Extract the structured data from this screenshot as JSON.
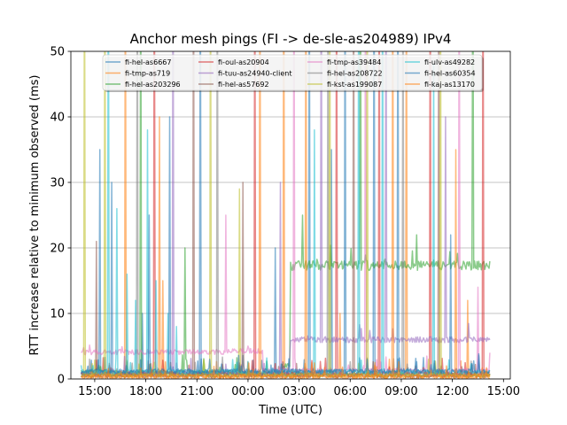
{
  "chart_data": {
    "type": "line",
    "title": "Anchor mesh pings (FI -> de-sle-as204989) IPv4",
    "xlabel": "Time (UTC)",
    "ylabel": "RTT increase relative to minimum observed (ms)",
    "x_unit": "hours since 00:00 UTC (day 1)",
    "xlim": [
      13.6,
      39.4
    ],
    "ylim": [
      0,
      50
    ],
    "grid": "horizontal",
    "legend_position": "top",
    "x_ticks": [
      {
        "value": 15,
        "label": "15:00"
      },
      {
        "value": 18,
        "label": "18:00"
      },
      {
        "value": 21,
        "label": "21:00"
      },
      {
        "value": 24,
        "label": "00:00"
      },
      {
        "value": 27,
        "label": "03:00"
      },
      {
        "value": 30,
        "label": "06:00"
      },
      {
        "value": 33,
        "label": "09:00"
      },
      {
        "value": 36,
        "label": "12:00"
      },
      {
        "value": 39,
        "label": "15:00"
      }
    ],
    "y_ticks": [
      {
        "value": 0,
        "label": "0"
      },
      {
        "value": 10,
        "label": "10"
      },
      {
        "value": 20,
        "label": "20"
      },
      {
        "value": 30,
        "label": "30"
      },
      {
        "value": 40,
        "label": "40"
      },
      {
        "value": 50,
        "label": "50"
      }
    ],
    "series": [
      {
        "name": "fi-hel-as6667",
        "color": "#1f77b4",
        "base": 0.9,
        "range": [
          14.2,
          38.2
        ],
        "spikes": [
          [
            15.3,
            35
          ],
          [
            17.8,
            10
          ],
          [
            21.2,
            50
          ],
          [
            25.6,
            20
          ],
          [
            27.6,
            50
          ],
          [
            28.9,
            35
          ],
          [
            31.4,
            50
          ]
        ]
      },
      {
        "name": "fi-tmp-as719",
        "color": "#ff7f0e",
        "base": 0.3,
        "range": [
          14.2,
          38.2
        ],
        "spikes": [
          [
            16.8,
            50
          ],
          [
            19.0,
            15
          ],
          [
            26.1,
            50
          ],
          [
            29.4,
            10
          ],
          [
            33.3,
            50
          ],
          [
            36.9,
            12
          ]
        ]
      },
      {
        "name": "fi-hel-as203296",
        "color": "#2ca02c",
        "base": 1.0,
        "range": [
          14.2,
          38.2
        ],
        "levels": [
          [
            14.2,
            1.0
          ],
          [
            26.0,
            2.0
          ],
          [
            26.5,
            17.3
          ]
        ],
        "spikes": [
          [
            17.7,
            50
          ],
          [
            20.3,
            20
          ],
          [
            27.2,
            25
          ],
          [
            30.6,
            50
          ],
          [
            33.9,
            22
          ],
          [
            37.2,
            50
          ]
        ]
      },
      {
        "name": "fi-oul-as20904",
        "color": "#d62728",
        "base": 0.8,
        "range": [
          14.2,
          38.2
        ],
        "spikes": [
          [
            18.5,
            50
          ],
          [
            24.4,
            50
          ],
          [
            29.2,
            50
          ],
          [
            31.7,
            50
          ],
          [
            34.7,
            50
          ],
          [
            37.8,
            50
          ]
        ]
      },
      {
        "name": "fi-tuu-as24940-client",
        "color": "#9467bd",
        "base": 0.9,
        "range": [
          14.2,
          38.2
        ],
        "levels": [
          [
            14.2,
            0.9
          ],
          [
            26.5,
            6.0
          ]
        ],
        "spikes": [
          [
            19.6,
            50
          ],
          [
            25.9,
            30
          ],
          [
            28.3,
            50
          ],
          [
            32.1,
            50
          ],
          [
            35.6,
            40
          ]
        ]
      },
      {
        "name": "fi-hel-as57692",
        "color": "#8c564b",
        "base": 0.5,
        "range": [
          14.2,
          38.2
        ],
        "spikes": [
          [
            15.1,
            21
          ],
          [
            20.8,
            50
          ],
          [
            23.7,
            30
          ],
          [
            30.2,
            50
          ],
          [
            35.2,
            50
          ]
        ]
      },
      {
        "name": "fi-tmp-as39484",
        "color": "#e377c2",
        "base": 4.1,
        "range": [
          14.2,
          38.2
        ],
        "levels": [
          [
            14.2,
            4.1
          ],
          [
            23.0,
            4.3
          ],
          [
            24.9,
            1.3
          ]
        ],
        "spikes": [
          [
            22.7,
            25
          ],
          [
            26.7,
            50
          ],
          [
            30.9,
            50
          ],
          [
            36.4,
            50
          ],
          [
            37.5,
            14
          ]
        ]
      },
      {
        "name": "fi-hel-as208722",
        "color": "#7f7f7f",
        "base": 0.7,
        "range": [
          14.2,
          38.2
        ],
        "spikes": [
          [
            17.5,
            50
          ],
          [
            22.2,
            50
          ],
          [
            28.7,
            50
          ],
          [
            33.1,
            50
          ]
        ]
      },
      {
        "name": "fi-kst-as199087",
        "color": "#bcbd22",
        "base": 0.6,
        "range": [
          14.2,
          38.2
        ],
        "spikes": [
          [
            14.4,
            50
          ],
          [
            15.6,
            50
          ],
          [
            21.8,
            50
          ],
          [
            23.5,
            29
          ],
          [
            28.8,
            50
          ],
          [
            31.0,
            50
          ],
          [
            35.3,
            50
          ]
        ]
      },
      {
        "name": "fi-ulv-as49282",
        "color": "#17becf",
        "base": 1.1,
        "range": [
          14.2,
          38.2
        ],
        "spikes": [
          [
            15.8,
            50
          ],
          [
            16.3,
            26
          ],
          [
            16.9,
            16
          ],
          [
            17.4,
            12
          ],
          [
            18.1,
            38
          ],
          [
            18.6,
            15
          ],
          [
            19.3,
            10
          ],
          [
            19.8,
            8
          ],
          [
            27.9,
            38
          ],
          [
            30.5,
            50
          ],
          [
            31.9,
            50
          ],
          [
            34.9,
            48
          ]
        ]
      },
      {
        "name": "fi-hel-as60354",
        "color": "#1f77b4",
        "base": 1.2,
        "range": [
          14.2,
          38.2
        ],
        "spikes": [
          [
            16.0,
            30
          ],
          [
            18.2,
            25
          ],
          [
            19.4,
            40
          ],
          [
            29.7,
            50
          ],
          [
            32.8,
            50
          ],
          [
            35.9,
            22
          ]
        ]
      },
      {
        "name": "fi-kaj-as13170",
        "color": "#ff7f0e",
        "base": 0.4,
        "range": [
          14.2,
          38.2
        ],
        "spikes": [
          [
            18.8,
            40
          ],
          [
            24.7,
            50
          ],
          [
            27.4,
            50
          ],
          [
            32.5,
            50
          ],
          [
            36.2,
            35
          ]
        ]
      }
    ]
  }
}
